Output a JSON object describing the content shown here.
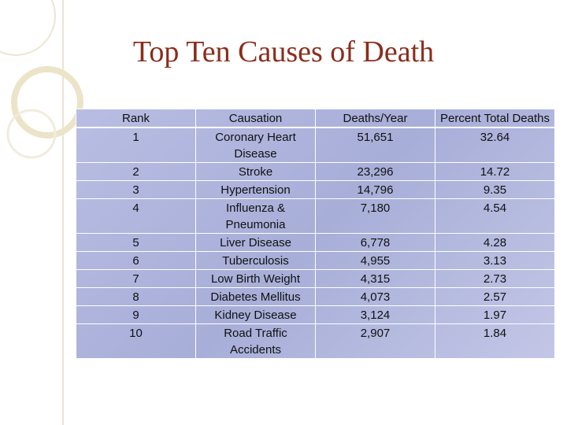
{
  "title": "Top Ten Causes of Death",
  "table": {
    "header": [
      "Rank",
      "Causation",
      "Deaths/Year",
      "Percent Total Deaths"
    ],
    "rows": [
      [
        "1",
        "Coronary Heart Disease",
        "51,651",
        "32.64"
      ],
      [
        "2",
        "Stroke",
        "23,296",
        "14.72"
      ],
      [
        "3",
        "Hypertension",
        "14,796",
        "9.35"
      ],
      [
        "4",
        "Influenza & Pneumonia",
        "7,180",
        "4.54"
      ],
      [
        "5",
        "Liver Disease",
        "6,778",
        "4.28"
      ],
      [
        "6",
        "Tuberculosis",
        "4,955",
        "3.13"
      ],
      [
        "7",
        "Low Birth Weight",
        "4,315",
        "2.73"
      ],
      [
        "8",
        "Diabetes Mellitus",
        "4,073",
        "2.57"
      ],
      [
        "9",
        "Kidney Disease",
        "3,124",
        "1.97"
      ],
      [
        "10",
        "Road Traffic Accidents",
        "2,907",
        "1.84"
      ]
    ]
  }
}
